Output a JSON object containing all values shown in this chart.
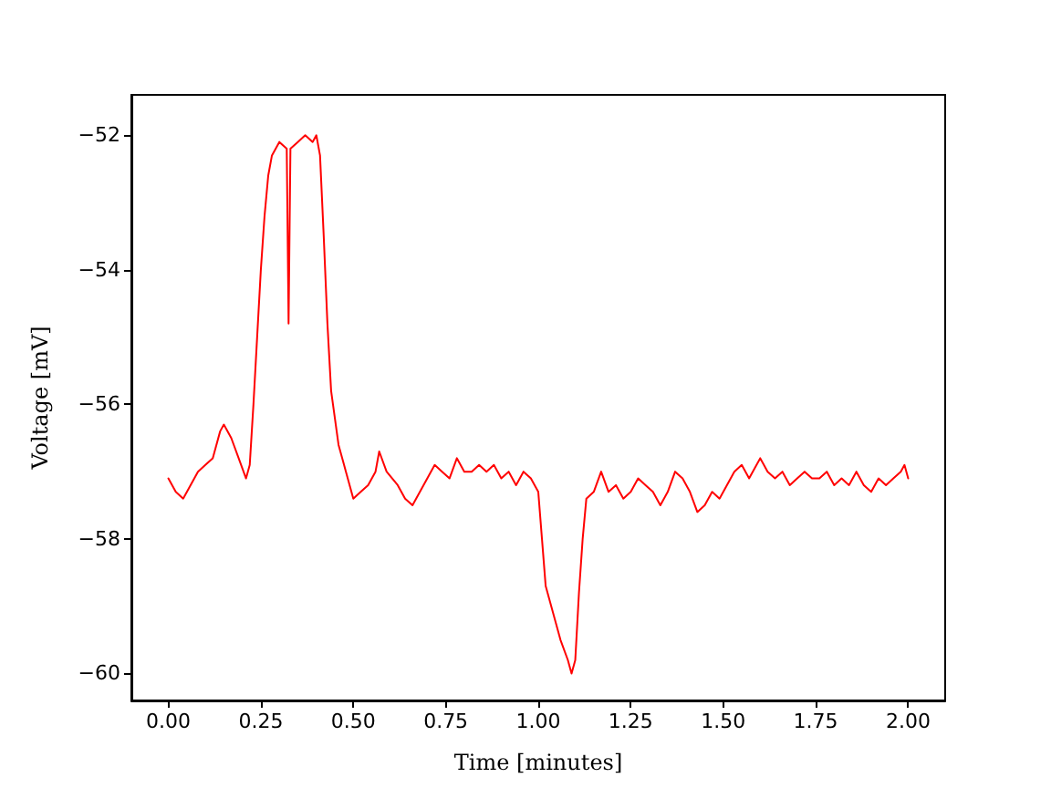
{
  "chart_data": {
    "type": "line",
    "xlabel": "Time [minutes]",
    "ylabel": "Voltage [mV]",
    "x": [
      0.0,
      0.02,
      0.04,
      0.06,
      0.08,
      0.1,
      0.12,
      0.14,
      0.15,
      0.17,
      0.19,
      0.21,
      0.22,
      0.23,
      0.24,
      0.25,
      0.26,
      0.27,
      0.28,
      0.3,
      0.32,
      0.325,
      0.33,
      0.35,
      0.37,
      0.39,
      0.4,
      0.41,
      0.42,
      0.43,
      0.44,
      0.46,
      0.48,
      0.5,
      0.52,
      0.54,
      0.56,
      0.57,
      0.59,
      0.62,
      0.64,
      0.66,
      0.68,
      0.7,
      0.72,
      0.74,
      0.76,
      0.78,
      0.8,
      0.82,
      0.84,
      0.86,
      0.88,
      0.9,
      0.92,
      0.94,
      0.96,
      0.98,
      1.0,
      1.01,
      1.02,
      1.04,
      1.06,
      1.08,
      1.09,
      1.1,
      1.11,
      1.12,
      1.13,
      1.15,
      1.17,
      1.19,
      1.21,
      1.23,
      1.25,
      1.27,
      1.29,
      1.31,
      1.33,
      1.35,
      1.37,
      1.39,
      1.41,
      1.43,
      1.45,
      1.47,
      1.49,
      1.51,
      1.53,
      1.55,
      1.57,
      1.6,
      1.62,
      1.64,
      1.66,
      1.68,
      1.7,
      1.72,
      1.74,
      1.76,
      1.78,
      1.8,
      1.82,
      1.84,
      1.86,
      1.88,
      1.9,
      1.92,
      1.94,
      1.96,
      1.98,
      1.99,
      2.0
    ],
    "series": [
      {
        "color": "#ff0000",
        "values": [
          -57.1,
          -57.3,
          -57.4,
          -57.2,
          -57.0,
          -56.9,
          -56.8,
          -56.4,
          -56.3,
          -56.5,
          -56.8,
          -57.1,
          -56.9,
          -56.0,
          -55.0,
          -54.0,
          -53.2,
          -52.6,
          -52.3,
          -52.1,
          -52.2,
          -54.8,
          -52.2,
          -52.1,
          -52.0,
          -52.1,
          -52.0,
          -52.3,
          -53.5,
          -54.8,
          -55.8,
          -56.6,
          -57.0,
          -57.4,
          -57.3,
          -57.2,
          -57.0,
          -56.7,
          -57.0,
          -57.2,
          -57.4,
          -57.5,
          -57.3,
          -57.1,
          -56.9,
          -57.0,
          -57.1,
          -56.8,
          -57.0,
          -57.0,
          -56.9,
          -57.0,
          -56.9,
          -57.1,
          -57.0,
          -57.2,
          -57.0,
          -57.1,
          -57.3,
          -58.0,
          -58.7,
          -59.1,
          -59.5,
          -59.8,
          -60.0,
          -59.8,
          -58.8,
          -58.0,
          -57.4,
          -57.3,
          -57.0,
          -57.3,
          -57.2,
          -57.4,
          -57.3,
          -57.1,
          -57.2,
          -57.3,
          -57.5,
          -57.3,
          -57.0,
          -57.1,
          -57.3,
          -57.6,
          -57.5,
          -57.3,
          -57.4,
          -57.2,
          -57.0,
          -56.9,
          -57.1,
          -56.8,
          -57.0,
          -57.1,
          -57.0,
          -57.2,
          -57.1,
          -57.0,
          -57.1,
          -57.1,
          -57.0,
          -57.2,
          -57.1,
          -57.2,
          -57.0,
          -57.2,
          -57.3,
          -57.1,
          -57.2,
          -57.1,
          -57.0,
          -56.9,
          -57.1
        ]
      }
    ],
    "xlim": [
      -0.1,
      2.1
    ],
    "ylim": [
      -60.4,
      -51.4
    ],
    "xticks": [
      {
        "value": 0,
        "label": "0.00"
      },
      {
        "value": 0.25,
        "label": "0.25"
      },
      {
        "value": 0.5,
        "label": "0.50"
      },
      {
        "value": 0.75,
        "label": "0.75"
      },
      {
        "value": 1,
        "label": "1.00"
      },
      {
        "value": 1.25,
        "label": "1.25"
      },
      {
        "value": 1.5,
        "label": "1.50"
      },
      {
        "value": 1.75,
        "label": "1.75"
      },
      {
        "value": 2,
        "label": "2.00"
      }
    ],
    "yticks": [
      -60,
      -58,
      -56,
      -54,
      -52
    ],
    "grid": false,
    "marker": "none",
    "line_style": "solid"
  }
}
